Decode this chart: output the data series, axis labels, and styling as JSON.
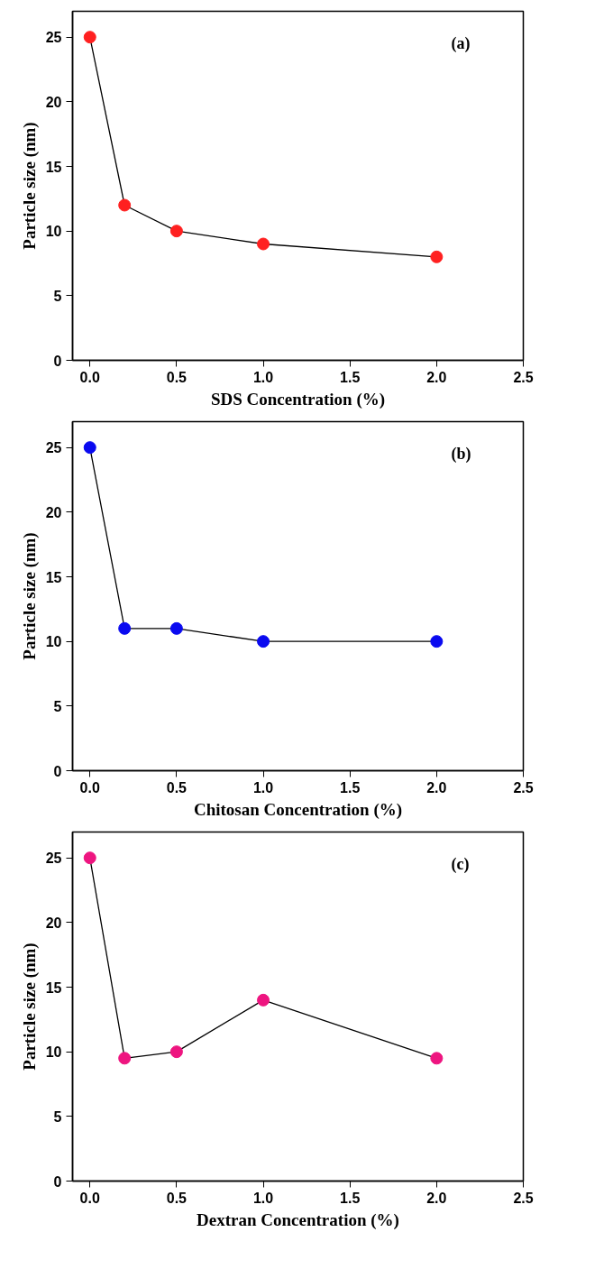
{
  "chart_data": [
    {
      "type": "line",
      "xlabel": "SDS Concentration (%)",
      "ylabel": "Particle size (nm)",
      "annotations": [
        "(a)"
      ],
      "x": [
        0,
        0.2,
        0.5,
        1.0,
        2.0
      ],
      "series": [
        {
          "color": "#ff2020",
          "values": [
            25,
            12,
            10,
            9,
            8
          ]
        }
      ],
      "xlim": [
        -0.1,
        2.5
      ],
      "ylim": [
        0,
        27
      ],
      "xticks": [
        {
          "value": 0,
          "label": "0.0"
        },
        0.5,
        {
          "value": 1,
          "label": "1.0"
        },
        1.5,
        {
          "value": 2,
          "label": "2.0"
        },
        2.5
      ],
      "yticks": [
        0,
        5,
        10,
        15,
        20,
        25
      ],
      "marker": "circle",
      "grid": false
    },
    {
      "type": "line",
      "xlabel": "Chitosan Concentration (%)",
      "ylabel": "Particle size (nm)",
      "annotations": [
        "(b)"
      ],
      "x": [
        0,
        0.2,
        0.5,
        1.0,
        2.0
      ],
      "series": [
        {
          "color": "#0a0af0",
          "values": [
            25,
            11,
            11,
            10,
            10
          ]
        }
      ],
      "xlim": [
        -0.1,
        2.5
      ],
      "ylim": [
        0,
        27
      ],
      "xticks": [
        {
          "value": 0,
          "label": "0.0"
        },
        0.5,
        {
          "value": 1,
          "label": "1.0"
        },
        1.5,
        {
          "value": 2,
          "label": "2.0"
        },
        2.5
      ],
      "yticks": [
        0,
        5,
        10,
        15,
        20,
        25
      ],
      "marker": "circle",
      "grid": false
    },
    {
      "type": "line",
      "xlabel": "Dextran Concentration (%)",
      "ylabel": "Particle size (nm)",
      "annotations": [
        "(c)"
      ],
      "x": [
        0,
        0.2,
        0.5,
        1.0,
        2.0
      ],
      "series": [
        {
          "color": "#ee1580",
          "values": [
            25,
            9.5,
            10,
            14,
            9.5
          ]
        }
      ],
      "xlim": [
        -0.1,
        2.5
      ],
      "ylim": [
        0,
        27
      ],
      "xticks": [
        {
          "value": 0,
          "label": "0.0"
        },
        0.5,
        {
          "value": 1,
          "label": "1.0"
        },
        1.5,
        {
          "value": 2,
          "label": "2.0"
        },
        2.5
      ],
      "yticks": [
        0,
        5,
        10,
        15,
        20,
        25
      ],
      "marker": "circle",
      "grid": false
    }
  ]
}
